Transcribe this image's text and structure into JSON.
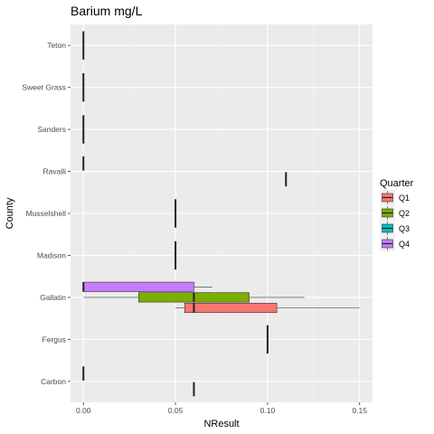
{
  "chart_data": {
    "type": "boxplot",
    "orientation": "horizontal",
    "title": "Barium mg/L",
    "xlabel": "NResult",
    "ylabel": "County",
    "xlim": [
      -0.007,
      0.157
    ],
    "x_ticks": [
      0,
      0.05,
      0.1,
      0.15
    ],
    "x_tick_labels": [
      "0.00",
      "0.05",
      "0.10",
      "0.15"
    ],
    "categories": [
      "Carbon",
      "Fergus",
      "Gallatin",
      "Madison",
      "Musselshell",
      "Ravalli",
      "Sanders",
      "Sweet Grass",
      "Teton"
    ],
    "legend": {
      "title": "Quarter",
      "position": "right",
      "entries": [
        {
          "name": "Q1",
          "color": "#F8766D"
        },
        {
          "name": "Q2",
          "color": "#7CAE00"
        },
        {
          "name": "Q3",
          "color": "#00BFC4"
        },
        {
          "name": "Q4",
          "color": "#C77CFF"
        }
      ]
    },
    "boxes": [
      {
        "category": "Carbon",
        "group": "Q1",
        "min": 0.06,
        "q1": 0.06,
        "median": 0.06,
        "q3": 0.06,
        "max": 0.06
      },
      {
        "category": "Carbon",
        "group": "Q4",
        "min": 0.0,
        "q1": 0.0,
        "median": 0.0,
        "q3": 0.0,
        "max": 0.0
      },
      {
        "category": "Fergus",
        "group": "Q1",
        "min": 0.1,
        "q1": 0.1,
        "median": 0.1,
        "q3": 0.1,
        "max": 0.1
      },
      {
        "category": "Gallatin",
        "group": "Q1",
        "min": 0.05,
        "q1": 0.055,
        "median": 0.06,
        "q3": 0.105,
        "max": 0.15
      },
      {
        "category": "Gallatin",
        "group": "Q2",
        "min": 0.0,
        "q1": 0.03,
        "median": 0.06,
        "q3": 0.09,
        "max": 0.12
      },
      {
        "category": "Gallatin",
        "group": "Q4",
        "min": 0.0,
        "q1": 0.0,
        "median": 0.0,
        "q3": 0.06,
        "max": 0.07
      },
      {
        "category": "Madison",
        "group": "Q1",
        "min": 0.05,
        "q1": 0.05,
        "median": 0.05,
        "q3": 0.05,
        "max": 0.05
      },
      {
        "category": "Musselshell",
        "group": "Q1",
        "min": 0.05,
        "q1": 0.05,
        "median": 0.05,
        "q3": 0.05,
        "max": 0.05
      },
      {
        "category": "Ravalli",
        "group": "Q1",
        "min": 0.11,
        "q1": 0.11,
        "median": 0.11,
        "q3": 0.11,
        "max": 0.11
      },
      {
        "category": "Ravalli",
        "group": "Q4",
        "min": 0.0,
        "q1": 0.0,
        "median": 0.0,
        "q3": 0.0,
        "max": 0.0
      },
      {
        "category": "Sanders",
        "group": "Q1",
        "min": 0.0,
        "q1": 0.0,
        "median": 0.0,
        "q3": 0.0,
        "max": 0.0
      },
      {
        "category": "Sweet Grass",
        "group": "Q1",
        "min": 0.0,
        "q1": 0.0,
        "median": 0.0,
        "q3": 0.0,
        "max": 0.0
      },
      {
        "category": "Teton",
        "group": "Q1",
        "min": 0.0,
        "q1": 0.0,
        "median": 0.0,
        "q3": 0.0,
        "max": 0.0
      }
    ],
    "grid": true,
    "background": "#EBEBEB"
  }
}
